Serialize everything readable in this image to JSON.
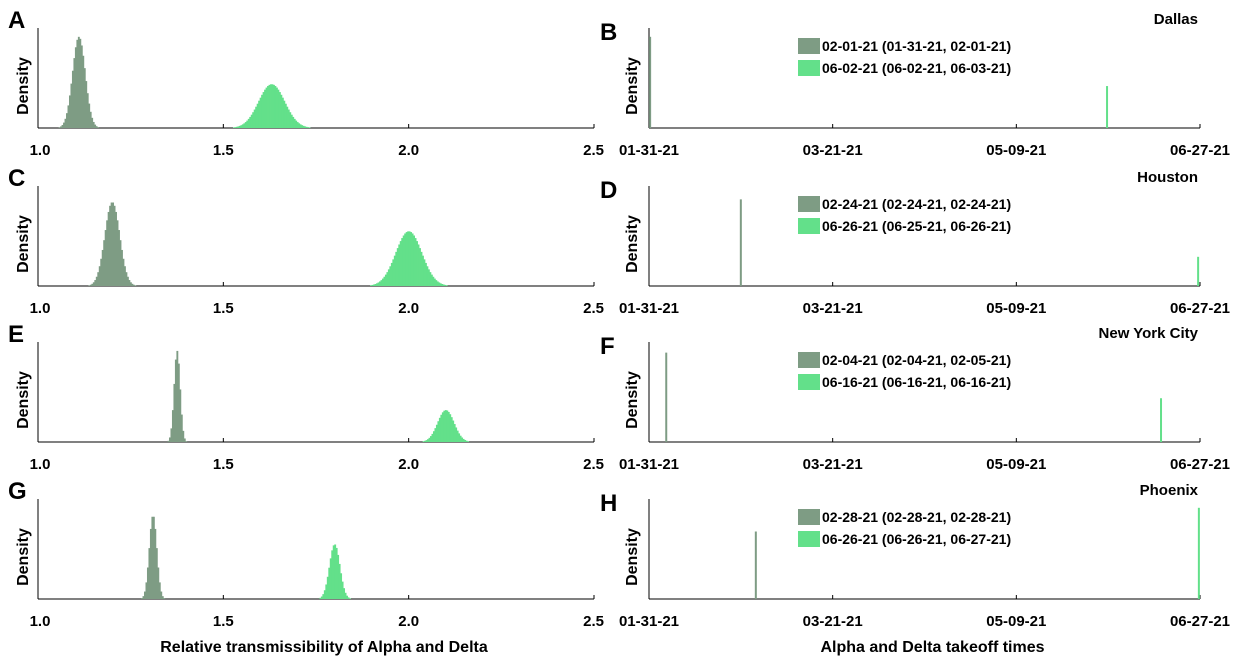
{
  "colors": {
    "alpha": "#7e9c84",
    "delta": "#63e08a",
    "axis": "#000000"
  },
  "chart_data": {
    "type": "histogram-grid",
    "left_xlabel": "Relative transmissibility of Alpha and Delta",
    "right_xlabel": "Alpha and Delta takeoff times",
    "ylabel": "Density",
    "left_xlim": [
      1.0,
      2.5
    ],
    "left_xticks": [
      "1.0",
      "1.5",
      "2.0",
      "2.5"
    ],
    "right_xticks": [
      "01-31-21",
      "03-21-21",
      "05-09-21",
      "06-27-21"
    ],
    "right_xlim_days": [
      0,
      147
    ],
    "rows": [
      {
        "city": "Dallas",
        "left_letter": "A",
        "right_letter": "B",
        "transmissibility": [
          {
            "variant": "Alpha",
            "mean": 1.11,
            "sd": 0.017,
            "rel_height": 1.0
          },
          {
            "variant": "Delta",
            "mean": 1.63,
            "sd": 0.035,
            "rel_height": 0.48
          }
        ],
        "takeoff": [
          {
            "variant": "Alpha",
            "day": 0.3,
            "rel_height": 1.0
          },
          {
            "variant": "Delta",
            "day": 122.2,
            "rel_height": 0.46
          }
        ],
        "legend": [
          "02-01-21 (01-31-21, 02-01-21)",
          "06-02-21 (06-02-21, 06-03-21)"
        ]
      },
      {
        "city": "Houston",
        "left_letter": "C",
        "right_letter": "D",
        "transmissibility": [
          {
            "variant": "Alpha",
            "mean": 1.2,
            "sd": 0.02,
            "rel_height": 0.92
          },
          {
            "variant": "Delta",
            "mean": 2.0,
            "sd": 0.035,
            "rel_height": 0.6
          }
        ],
        "takeoff": [
          {
            "variant": "Alpha",
            "day": 24.5,
            "rel_height": 0.95
          },
          {
            "variant": "Delta",
            "day": 146.5,
            "rel_height": 0.32
          }
        ],
        "legend": [
          "02-24-21 (02-24-21, 02-24-21)",
          "06-26-21 (06-25-21, 06-26-21)"
        ]
      },
      {
        "city": "New York City",
        "left_letter": "E",
        "right_letter": "F",
        "transmissibility": [
          {
            "variant": "Alpha",
            "mean": 1.375,
            "sd": 0.008,
            "rel_height": 1.0
          },
          {
            "variant": "Delta",
            "mean": 2.1,
            "sd": 0.022,
            "rel_height": 0.35
          }
        ],
        "takeoff": [
          {
            "variant": "Alpha",
            "day": 4.6,
            "rel_height": 0.98
          },
          {
            "variant": "Delta",
            "day": 136.6,
            "rel_height": 0.48
          }
        ],
        "legend": [
          "02-04-21 (02-04-21, 02-05-21)",
          "06-16-21 (06-16-21, 06-16-21)"
        ]
      },
      {
        "city": "Phoenix",
        "left_letter": "G",
        "right_letter": "H",
        "transmissibility": [
          {
            "variant": "Alpha",
            "mean": 1.31,
            "sd": 0.01,
            "rel_height": 0.92
          },
          {
            "variant": "Delta",
            "mean": 1.8,
            "sd": 0.014,
            "rel_height": 0.6
          }
        ],
        "takeoff": [
          {
            "variant": "Alpha",
            "day": 28.5,
            "rel_height": 0.74
          },
          {
            "variant": "Delta",
            "day": 146.7,
            "rel_height": 1.0
          }
        ],
        "legend": [
          "02-28-21 (02-28-21, 02-28-21)",
          "06-26-21 (06-26-21, 06-27-21)"
        ]
      }
    ]
  }
}
